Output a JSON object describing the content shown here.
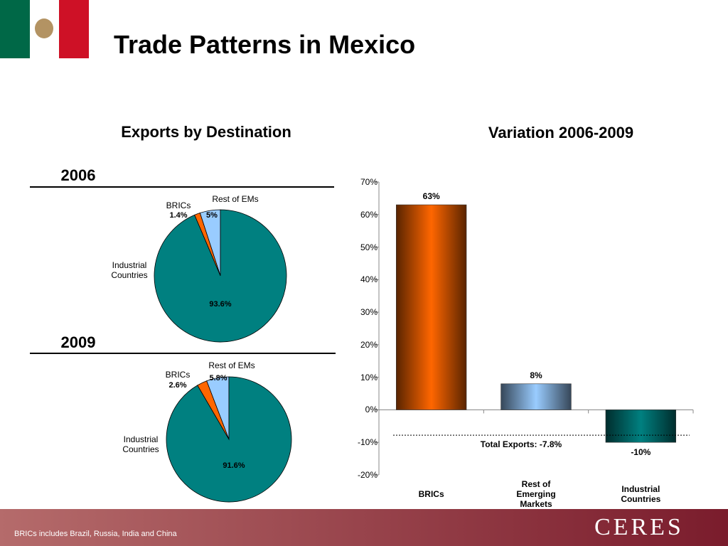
{
  "title": "Trade Patterns in Mexico",
  "left_title": "Exports by Destination",
  "footnote": "BRICs includes Brazil, Russia, India and China",
  "logo": "CERES",
  "chart_data": [
    {
      "type": "pie",
      "title": "2006",
      "categories": [
        "Rest of EMs",
        "BRICs",
        "Industrial Countries"
      ],
      "values": [
        5,
        1.4,
        93.6
      ],
      "value_labels": [
        "5%",
        "1.4%",
        "93.6%"
      ],
      "colors": [
        "#99ccff",
        "#ff6600",
        "#008080"
      ]
    },
    {
      "type": "pie",
      "title": "2009",
      "categories": [
        "Rest of EMs",
        "BRICs",
        "Industrial Countries"
      ],
      "values": [
        5.8,
        2.6,
        91.6
      ],
      "value_labels": [
        "5.8%",
        "2.6%",
        "91.6%"
      ],
      "colors": [
        "#99ccff",
        "#ff6600",
        "#008080"
      ]
    },
    {
      "type": "bar",
      "title": "Variation 2006-2009",
      "categories": [
        "BRICs",
        "Rest of Emerging Markets",
        "Industrial Countries"
      ],
      "values": [
        63,
        8,
        -10
      ],
      "value_labels": [
        "63%",
        "8%",
        "-10%"
      ],
      "colors": [
        "#ff6600",
        "#99ccff",
        "#008080"
      ],
      "ylim": [
        -20,
        70
      ],
      "yticks": [
        {
          "value": -20,
          "label": "-20%"
        },
        {
          "value": -10,
          "label": "-10%"
        },
        {
          "value": 0,
          "label": "0%"
        },
        {
          "value": 10,
          "label": "10%"
        },
        {
          "value": 20,
          "label": "20%"
        },
        {
          "value": 30,
          "label": "30%"
        },
        {
          "value": 40,
          "label": "40%"
        },
        {
          "value": 50,
          "label": "50%"
        },
        {
          "value": 60,
          "label": "60%"
        },
        {
          "value": 70,
          "label": "70%"
        }
      ],
      "reference": {
        "value": -7.8,
        "label": "Total Exports: -7.8%"
      }
    }
  ]
}
